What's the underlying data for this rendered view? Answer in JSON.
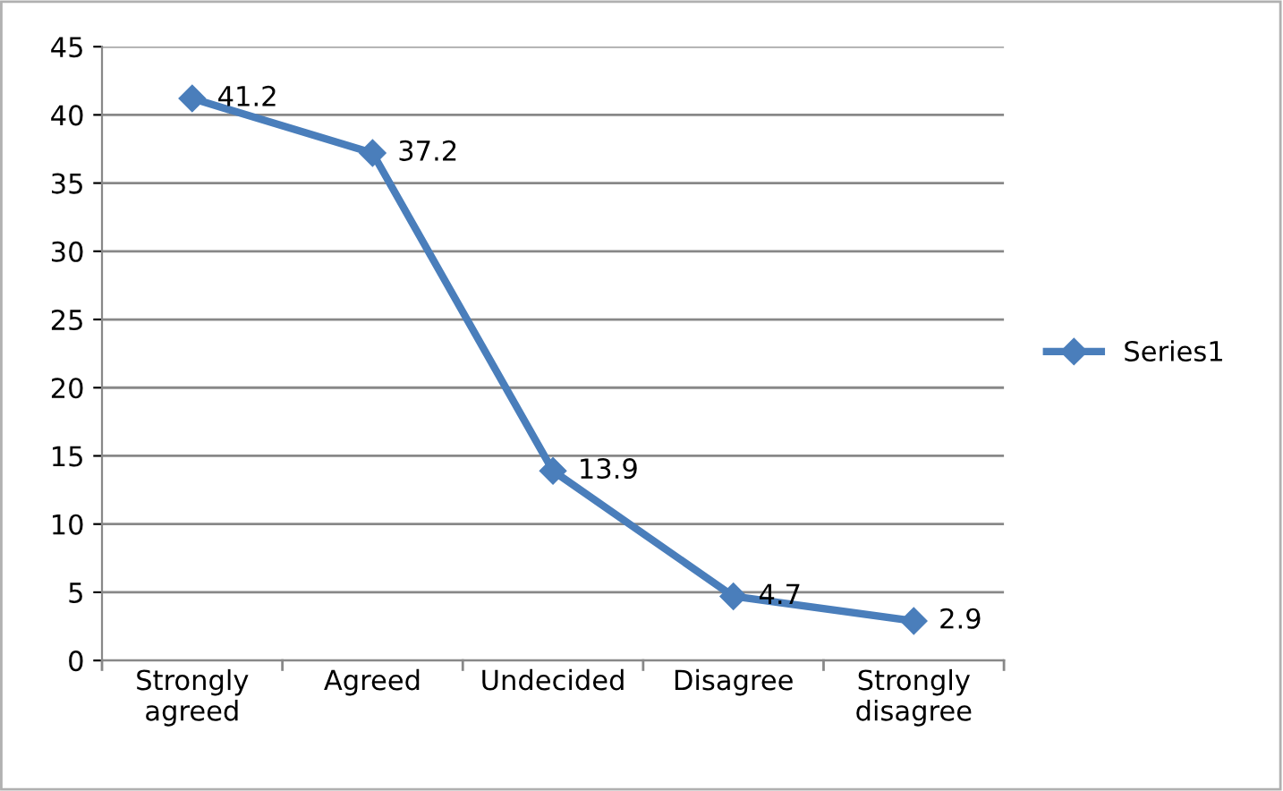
{
  "chart_data": {
    "type": "line",
    "categories": [
      "Strongly agreed",
      "Agreed",
      "Undecided",
      "Disagree",
      "Strongly disagree"
    ],
    "series": [
      {
        "name": "Series1",
        "color": "#4a7ebb",
        "values": [
          41.2,
          37.2,
          13.9,
          4.7,
          2.9
        ]
      }
    ],
    "ylim": [
      0,
      45
    ],
    "yticks": [
      0,
      5,
      10,
      15,
      20,
      25,
      30,
      35,
      40,
      45
    ],
    "grid": "y",
    "legend": "right",
    "marker": "diamond",
    "line_style": "solid",
    "data_labels": true
  }
}
